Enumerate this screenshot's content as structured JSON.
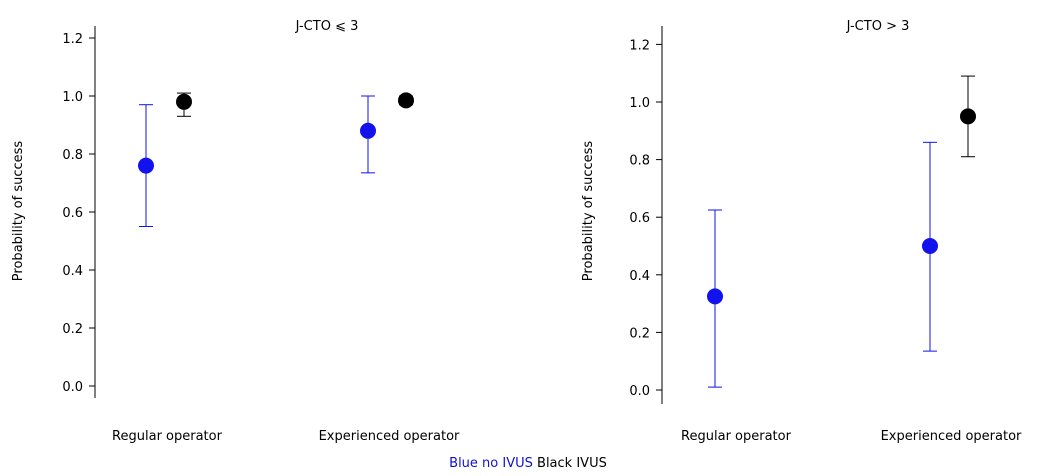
{
  "chart_data": [
    {
      "type": "scatter",
      "title": "J-CTO ⩽ 3",
      "ylabel": "Probability of success",
      "xlabel": "",
      "categories": [
        "Regular operator",
        "Experienced operator"
      ],
      "ylim": [
        -0.05,
        1.27
      ],
      "yticks": [
        "0.0",
        "0.2",
        "0.4",
        "0.6",
        "0.8",
        "1.0",
        "1.2"
      ],
      "grid": false,
      "series": [
        {
          "name": "no IVUS",
          "color": "#1212ee",
          "values": [
            0.76,
            0.88
          ],
          "lower": [
            0.55,
            0.735
          ],
          "upper": [
            0.97,
            1.0
          ]
        },
        {
          "name": "IVUS",
          "color": "#000000",
          "values": [
            0.98,
            0.985
          ],
          "lower": [
            0.93,
            0.97
          ],
          "upper": [
            1.01,
            1.0
          ]
        }
      ]
    },
    {
      "type": "scatter",
      "title": "J-CTO > 3",
      "ylabel": "Probability of success",
      "xlabel": "",
      "categories": [
        "Regular operator",
        "Experienced operator"
      ],
      "ylim": [
        -0.05,
        1.27
      ],
      "yticks": [
        "0.0",
        "0.2",
        "0.4",
        "0.6",
        "0.8",
        "1.0",
        "1.2"
      ],
      "grid": false,
      "series": [
        {
          "name": "no IVUS",
          "color": "#1212ee",
          "values": [
            0.325,
            0.5
          ],
          "lower": [
            0.01,
            0.135
          ],
          "upper": [
            0.625,
            0.86
          ]
        },
        {
          "name": "IVUS",
          "color": "#000000",
          "values": [
            null,
            0.95
          ],
          "lower": [
            null,
            0.81
          ],
          "upper": [
            null,
            1.09
          ]
        }
      ]
    }
  ],
  "legend": {
    "blue_text": "Blue no IVUS",
    "black_text": "Black IVUS",
    "blue_color": "#1212cc",
    "black_color": "#000000"
  }
}
